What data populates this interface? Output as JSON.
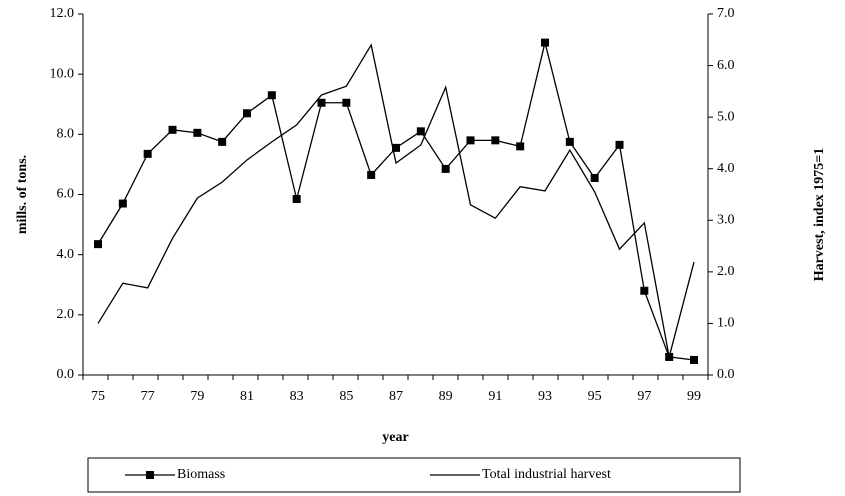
{
  "chart_data": {
    "type": "line",
    "categories": [
      "75",
      null,
      "77",
      null,
      "79",
      null,
      "81",
      null,
      "83",
      null,
      "85",
      null,
      "87",
      null,
      "89",
      null,
      "91",
      null,
      "93",
      null,
      "95",
      null,
      "97",
      null,
      "99"
    ],
    "series": [
      {
        "name": "Biomass",
        "color": "#000000",
        "marker": "square",
        "axis": "y",
        "values": [
          4.35,
          5.7,
          7.35,
          8.15,
          8.05,
          7.75,
          8.7,
          9.3,
          5.85,
          9.05,
          9.05,
          6.65,
          7.55,
          8.1,
          6.85,
          7.8,
          7.8,
          7.6,
          11.05,
          7.75,
          6.55,
          7.65,
          2.8,
          0.6,
          0.5
        ]
      },
      {
        "name": "Total industrial harvest",
        "color": "#000000",
        "axis": "y2",
        "values": [
          1.0,
          1.78,
          1.69,
          2.65,
          3.43,
          3.74,
          4.17,
          4.52,
          4.85,
          5.43,
          5.6,
          6.4,
          4.11,
          4.46,
          5.58,
          3.3,
          3.04,
          3.65,
          3.57,
          4.36,
          3.55,
          2.44,
          2.95,
          0.35,
          2.19
        ]
      }
    ],
    "xlabel": "year",
    "ylabel": "mills. of tons.",
    "y2label": "Harvest, index 1975=1",
    "ylim": [
      0,
      12
    ],
    "yticks": [
      {
        "value": 0,
        "label": "0.0"
      },
      {
        "value": 2,
        "label": "2.0"
      },
      {
        "value": 4,
        "label": "4.0"
      },
      {
        "value": 6,
        "label": "6.0"
      },
      {
        "value": 8,
        "label": "8.0"
      },
      {
        "value": 10,
        "label": "10.0"
      },
      {
        "value": 12,
        "label": "12.0"
      }
    ],
    "y2lim": [
      0,
      7
    ],
    "y2ticks": [
      {
        "value": 0,
        "label": "0.0"
      },
      {
        "value": 1,
        "label": "1.0"
      },
      {
        "value": 2,
        "label": "2.0"
      },
      {
        "value": 3,
        "label": "3.0"
      },
      {
        "value": 4,
        "label": "4.0"
      },
      {
        "value": 5,
        "label": "5.0"
      },
      {
        "value": 6,
        "label": "6.0"
      },
      {
        "value": 7,
        "label": "7.0"
      }
    ],
    "grid": false,
    "legend": "bottom"
  }
}
